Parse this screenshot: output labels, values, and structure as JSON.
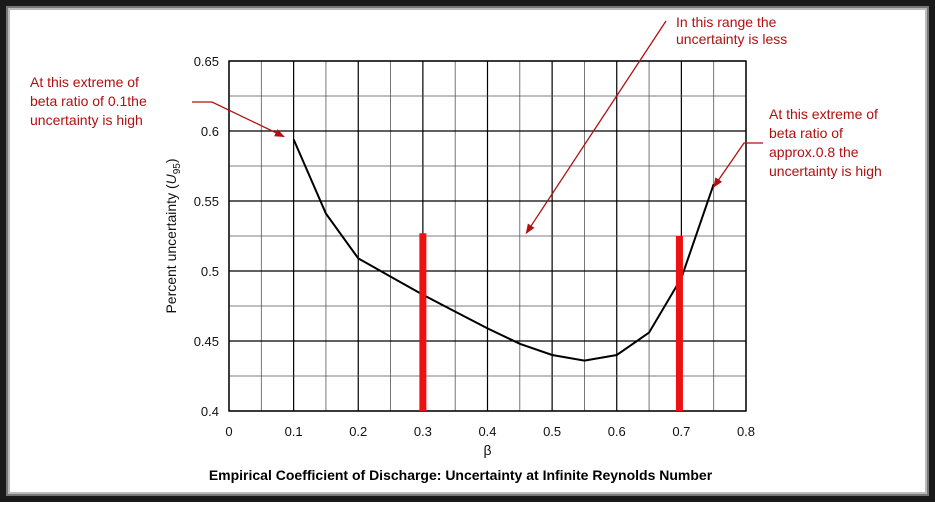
{
  "chart_data": {
    "type": "line",
    "title": "Empirical Coefficient of Discharge: Uncertainty at Infinite Reynolds Number",
    "xlabel": "β",
    "ylabel_parts": [
      "Percent uncertainty (",
      "U",
      "95",
      ")"
    ],
    "xlim": [
      0,
      0.8
    ],
    "ylim": [
      0.4,
      0.65
    ],
    "x_ticks": [
      "0",
      "0.1",
      "0.2",
      "0.3",
      "0.4",
      "0.5",
      "0.6",
      "0.7",
      "0.8"
    ],
    "y_ticks": [
      "0.4",
      "0.45",
      "0.5",
      "0.55",
      "0.6",
      "0.65"
    ],
    "grid": true,
    "series": [
      {
        "x": [
          0.1,
          0.15,
          0.2,
          0.25,
          0.3,
          0.35,
          0.4,
          0.45,
          0.5,
          0.55,
          0.6,
          0.65,
          0.7,
          0.75
        ],
        "y": [
          0.594,
          0.541,
          0.509,
          0.496,
          0.483,
          0.471,
          0.459,
          0.448,
          0.44,
          0.436,
          0.44,
          0.456,
          0.495,
          0.562
        ]
      }
    ],
    "markers": [
      {
        "x": 0.3,
        "y_top": 0.527
      },
      {
        "x": 0.697,
        "y_top": 0.525
      }
    ],
    "annotations": [
      {
        "lines": [
          "At this extreme of",
          "beta ratio of 0.1the",
          "uncertainty is high"
        ],
        "arrow_to": {
          "x": 0.085,
          "y": 0.596
        }
      },
      {
        "lines": [
          "In this range the",
          "uncertainty is less"
        ],
        "arrow_to": {
          "x": 0.46,
          "y": 0.527
        }
      },
      {
        "lines": [
          "At this extreme of",
          "beta ratio of",
          "approx.0.8 the",
          "uncertainty is high"
        ],
        "arrow_to": {
          "x": 0.75,
          "y": 0.56
        }
      }
    ]
  },
  "colors": {
    "line": "#000000",
    "marker": "#ee1111",
    "annotation": "#b01010",
    "grid_major": "#000000",
    "grid_minor": "#555555"
  }
}
